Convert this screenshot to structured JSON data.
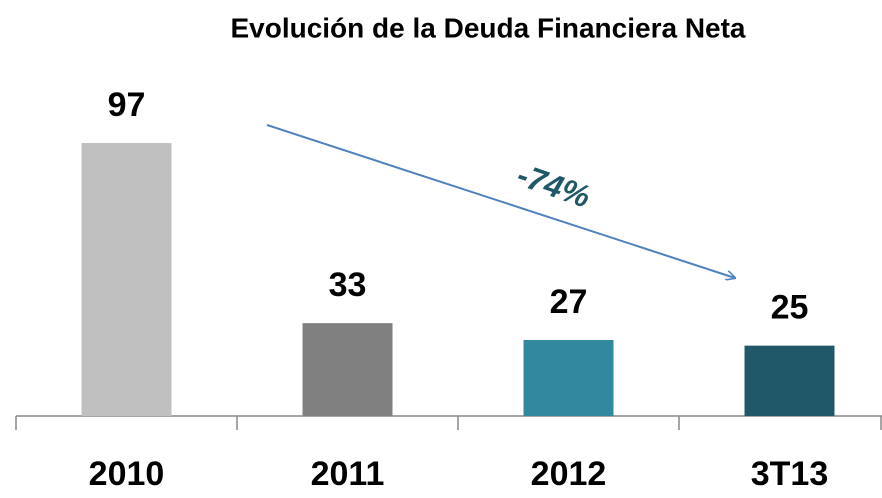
{
  "chart_data": {
    "type": "bar",
    "title": "Evolución de la Deuda Financiera Neta",
    "categories": [
      "2010",
      "2011",
      "2012",
      "3T13"
    ],
    "values": [
      97,
      33,
      27,
      25
    ],
    "colors": [
      "#c0c0c0",
      "#808080",
      "#31889f",
      "#215868"
    ],
    "annotation": "-74%"
  }
}
